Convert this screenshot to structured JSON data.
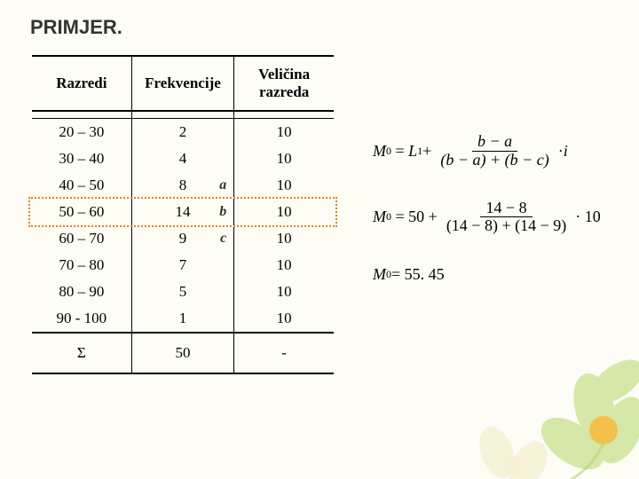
{
  "title": "PRIMJER.",
  "table": {
    "headers": [
      "Razredi",
      "Frekvencije",
      "Veličina razreda"
    ],
    "rows": [
      {
        "range": "20 – 30",
        "freq": "2",
        "annot": "",
        "width": "10"
      },
      {
        "range": "30 – 40",
        "freq": "4",
        "annot": "",
        "width": "10"
      },
      {
        "range": "40 – 50",
        "freq": "8",
        "annot": "a",
        "width": "10"
      },
      {
        "range": "50 – 60",
        "freq": "14",
        "annot": "b",
        "width": "10"
      },
      {
        "range": "60 – 70",
        "freq": "9",
        "annot": "c",
        "width": "10"
      },
      {
        "range": "70 – 80",
        "freq": "7",
        "annot": "",
        "width": "10"
      },
      {
        "range": "80 – 90",
        "freq": "5",
        "annot": "",
        "width": "10"
      },
      {
        "range": "90 - 100",
        "freq": "1",
        "annot": "",
        "width": "10"
      }
    ],
    "sum_label": "Σ",
    "sum_freq": "50",
    "sum_width": "-",
    "highlight_row_index": 3,
    "highlight_color": "#d08a1e"
  },
  "formulas": {
    "line1": {
      "lhs": "M",
      "lhs_sub": "0",
      "rhs_lead": "L",
      "rhs_lead_sub": "1",
      "plus": " + ",
      "frac_num": "b − a",
      "frac_den": "(b − a) + (b − c)",
      "tail": " · ",
      "tail_var": "i"
    },
    "line2": {
      "lhs": "M",
      "lhs_sub": "0",
      "eq_val": "50 + ",
      "frac_num": "14 − 8",
      "frac_den": "(14 − 8) + (14 − 9)",
      "tail": " · 10"
    },
    "line3": {
      "lhs": "M",
      "lhs_sub": "0",
      "rhs": " = 55. 45"
    }
  },
  "decor": {
    "petal_color": "#cfe59a",
    "center_color": "#f3c14b",
    "stem_color": "#b8d474"
  }
}
